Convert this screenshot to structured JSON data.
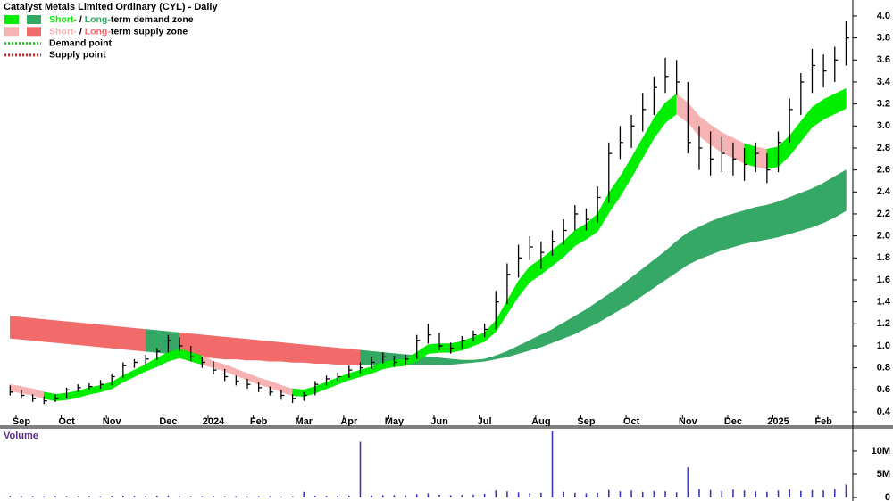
{
  "chart_data": [
    {
      "type": "ohlc",
      "title": "Catalyst Metals Limited Ordinary (CYL) - Daily",
      "categories": [
        null,
        "Sep",
        null,
        null,
        null,
        "Oct",
        null,
        null,
        null,
        "Nov",
        null,
        null,
        null,
        null,
        "Dec",
        null,
        null,
        null,
        "2024",
        null,
        null,
        null,
        "Feb",
        null,
        null,
        null,
        "Mar",
        null,
        null,
        null,
        "Apr",
        null,
        null,
        null,
        "May",
        null,
        null,
        null,
        "Jun",
        null,
        null,
        null,
        "Jul",
        null,
        null,
        null,
        null,
        "Aug",
        null,
        null,
        null,
        "Sep",
        null,
        null,
        null,
        "Oct",
        null,
        null,
        null,
        null,
        "Nov",
        null,
        null,
        null,
        "Dec",
        null,
        null,
        null,
        "2025",
        null,
        null,
        null,
        "Feb",
        null,
        null
      ],
      "high": [
        0.64,
        0.6,
        0.56,
        0.54,
        0.56,
        0.62,
        0.65,
        0.66,
        0.69,
        0.75,
        0.85,
        0.88,
        0.92,
        0.98,
        1.1,
        1.08,
        1.0,
        0.9,
        0.86,
        0.79,
        0.73,
        0.7,
        0.67,
        0.63,
        0.6,
        0.56,
        0.58,
        0.68,
        0.73,
        0.76,
        0.82,
        0.85,
        0.9,
        0.94,
        0.91,
        0.92,
        1.1,
        1.2,
        1.12,
        1.03,
        1.09,
        1.14,
        1.2,
        1.5,
        1.75,
        1.92,
        2.0,
        1.95,
        2.05,
        2.15,
        2.28,
        2.25,
        2.45,
        2.85,
        3.0,
        3.1,
        3.3,
        3.45,
        3.62,
        3.6,
        3.4,
        3.0,
        2.95,
        2.9,
        2.85,
        2.8,
        2.85,
        2.75,
        2.95,
        3.25,
        3.48,
        3.7,
        3.65,
        3.72,
        3.95
      ],
      "low": [
        0.55,
        0.52,
        0.49,
        0.47,
        0.49,
        0.52,
        0.58,
        0.6,
        0.61,
        0.64,
        0.71,
        0.8,
        0.83,
        0.87,
        0.94,
        0.95,
        0.86,
        0.8,
        0.74,
        0.68,
        0.64,
        0.61,
        0.58,
        0.55,
        0.51,
        0.48,
        0.5,
        0.55,
        0.64,
        0.68,
        0.71,
        0.75,
        0.79,
        0.84,
        0.81,
        0.82,
        0.88,
        1.02,
        0.96,
        0.93,
        0.97,
        1.04,
        1.08,
        1.15,
        1.38,
        1.62,
        1.78,
        1.7,
        1.82,
        1.92,
        2.05,
        2.05,
        2.12,
        2.3,
        2.7,
        2.8,
        2.95,
        3.1,
        3.3,
        3.28,
        2.75,
        2.6,
        2.55,
        2.58,
        2.55,
        2.5,
        2.58,
        2.48,
        2.58,
        2.85,
        3.1,
        3.3,
        3.35,
        3.4,
        3.55
      ],
      "close": [
        0.58,
        0.55,
        0.52,
        0.5,
        0.52,
        0.6,
        0.62,
        0.63,
        0.65,
        0.72,
        0.82,
        0.85,
        0.88,
        0.95,
        1.05,
        1.0,
        0.9,
        0.85,
        0.78,
        0.72,
        0.68,
        0.65,
        0.62,
        0.58,
        0.55,
        0.52,
        0.55,
        0.65,
        0.7,
        0.72,
        0.78,
        0.8,
        0.85,
        0.9,
        0.85,
        0.88,
        1.05,
        1.1,
        1.0,
        0.98,
        1.05,
        1.1,
        1.15,
        1.4,
        1.65,
        1.8,
        1.9,
        1.85,
        1.95,
        2.05,
        2.2,
        2.15,
        2.35,
        2.75,
        2.85,
        3.0,
        3.15,
        3.35,
        3.45,
        3.4,
        2.85,
        2.8,
        2.7,
        2.75,
        2.7,
        2.65,
        2.75,
        2.6,
        2.85,
        3.15,
        3.4,
        3.55,
        3.5,
        3.6,
        3.8
      ],
      "color": "#000000",
      "short_zone": {
        "upper": [
          0.65,
          0.63,
          0.61,
          0.58,
          0.56,
          0.57,
          0.59,
          0.62,
          0.64,
          0.67,
          0.73,
          0.78,
          0.83,
          0.89,
          0.94,
          0.97,
          0.94,
          0.91,
          0.86,
          0.83,
          0.79,
          0.75,
          0.71,
          0.68,
          0.64,
          0.61,
          0.6,
          0.63,
          0.67,
          0.71,
          0.75,
          0.78,
          0.81,
          0.85,
          0.87,
          0.88,
          0.94,
          1.01,
          1.02,
          1.02,
          1.04,
          1.08,
          1.12,
          1.23,
          1.41,
          1.59,
          1.72,
          1.79,
          1.87,
          1.95,
          2.05,
          2.11,
          2.2,
          2.39,
          2.54,
          2.71,
          2.89,
          3.07,
          3.21,
          3.29,
          3.21,
          3.09,
          3.01,
          2.94,
          2.89,
          2.84,
          2.81,
          2.79,
          2.81,
          2.91,
          3.04,
          3.17,
          3.24,
          3.29,
          3.34
        ],
        "lower": [
          0.59,
          0.57,
          0.55,
          0.52,
          0.5,
          0.51,
          0.53,
          0.56,
          0.58,
          0.61,
          0.67,
          0.72,
          0.77,
          0.81,
          0.86,
          0.89,
          0.86,
          0.83,
          0.8,
          0.77,
          0.73,
          0.69,
          0.65,
          0.62,
          0.58,
          0.55,
          0.54,
          0.57,
          0.61,
          0.65,
          0.69,
          0.72,
          0.75,
          0.79,
          0.81,
          0.82,
          0.86,
          0.93,
          0.94,
          0.94,
          0.96,
          1.0,
          1.04,
          1.13,
          1.29,
          1.45,
          1.58,
          1.65,
          1.73,
          1.81,
          1.91,
          1.97,
          2.04,
          2.21,
          2.36,
          2.53,
          2.71,
          2.89,
          3.03,
          3.11,
          3.03,
          2.91,
          2.83,
          2.76,
          2.71,
          2.66,
          2.63,
          2.61,
          2.63,
          2.73,
          2.86,
          2.99,
          3.06,
          3.11,
          3.16
        ]
      },
      "long_zone": {
        "upper": [
          1.27,
          1.26,
          1.25,
          1.24,
          1.23,
          1.22,
          1.21,
          1.2,
          1.19,
          1.18,
          1.17,
          1.16,
          1.15,
          1.14,
          1.13,
          1.12,
          1.11,
          1.1,
          1.09,
          1.08,
          1.07,
          1.06,
          1.05,
          1.04,
          1.03,
          1.02,
          1.01,
          1.0,
          0.99,
          0.98,
          0.97,
          0.96,
          0.95,
          0.94,
          0.93,
          0.92,
          0.91,
          0.9,
          0.89,
          0.88,
          0.87,
          0.87,
          0.88,
          0.91,
          0.95,
          1.0,
          1.05,
          1.1,
          1.15,
          1.21,
          1.27,
          1.33,
          1.4,
          1.47,
          1.54,
          1.62,
          1.7,
          1.78,
          1.86,
          1.95,
          2.03,
          2.08,
          2.13,
          2.17,
          2.2,
          2.23,
          2.26,
          2.28,
          2.31,
          2.35,
          2.39,
          2.43,
          2.48,
          2.54,
          2.6
        ],
        "lower": [
          1.07,
          1.06,
          1.05,
          1.04,
          1.03,
          1.02,
          1.01,
          1.0,
          0.99,
          0.98,
          0.97,
          0.96,
          0.95,
          0.94,
          0.93,
          0.92,
          0.91,
          0.9,
          0.89,
          0.88,
          0.88,
          0.87,
          0.87,
          0.86,
          0.86,
          0.85,
          0.85,
          0.84,
          0.84,
          0.83,
          0.83,
          0.83,
          0.83,
          0.83,
          0.83,
          0.83,
          0.83,
          0.83,
          0.83,
          0.83,
          0.84,
          0.85,
          0.86,
          0.88,
          0.9,
          0.93,
          0.96,
          0.99,
          1.03,
          1.07,
          1.11,
          1.16,
          1.21,
          1.27,
          1.33,
          1.39,
          1.46,
          1.53,
          1.6,
          1.67,
          1.74,
          1.79,
          1.83,
          1.87,
          1.9,
          1.93,
          1.95,
          1.97,
          1.99,
          2.02,
          2.05,
          2.08,
          2.12,
          2.17,
          2.23
        ]
      },
      "legend": [
        {
          "parts": [
            "Short-",
            " / ",
            "Long-",
            "term demand zone"
          ],
          "colors": [
            "#00ee00",
            "#35a866"
          ]
        },
        {
          "parts": [
            "Short-",
            " / ",
            "Long-",
            "term supply zone"
          ],
          "colors": [
            "#f7b3b3",
            "#f26b6b"
          ]
        },
        {
          "label": "Demand point",
          "color": "#22cc22"
        },
        {
          "label": "Supply point",
          "color": "#dd2222"
        }
      ],
      "ylim": [
        0.335,
        4.105
      ],
      "yticks": [
        0.4,
        0.6,
        0.8,
        {
          "value": 1,
          "label": "1.0"
        },
        1.2,
        1.4,
        1.6,
        1.8,
        {
          "value": 2,
          "label": "2.0"
        },
        2.2,
        2.4,
        2.6,
        2.8,
        {
          "value": 3,
          "label": "3.0"
        },
        3.2,
        3.4,
        3.6,
        3.8,
        {
          "value": 4,
          "label": "4.0"
        }
      ]
    },
    {
      "type": "bar",
      "title": "Volume",
      "values": [
        350000,
        280000,
        300000,
        250000,
        320000,
        300000,
        280000,
        310000,
        260000,
        330000,
        400000,
        350000,
        300000,
        380000,
        420000,
        300000,
        280000,
        260000,
        300000,
        250000,
        270000,
        240000,
        260000,
        280000,
        230000,
        250000,
        1200000,
        400000,
        350000,
        380000,
        420000,
        12000000,
        450000,
        500000,
        520000,
        480000,
        700000,
        900000,
        600000,
        500000,
        550000,
        620000,
        800000,
        1500000,
        1300000,
        1100000,
        900000,
        1000000,
        14300000,
        1200000,
        1000000,
        900000,
        1000000,
        1600000,
        1300000,
        1500000,
        1200000,
        1400000,
        1300000,
        1100000,
        6500000,
        1800000,
        1600000,
        1400000,
        1700000,
        1500000,
        1300000,
        1200000,
        1500000,
        1700000,
        1400000,
        1600000,
        1500000,
        1800000,
        2800000
      ],
      "color": "#3a3ab8",
      "ylim": [
        0,
        14600000
      ],
      "yticks": [
        0,
        {
          "value": 5000000,
          "label": "5M"
        },
        {
          "value": 10000000,
          "label": "10M"
        }
      ]
    }
  ]
}
